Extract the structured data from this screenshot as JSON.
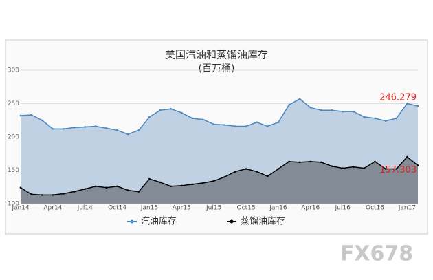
{
  "chart_data": {
    "type": "area",
    "title": "美国汽油和蒸馏油库存",
    "subtitle": "(百万桶)",
    "categories": [
      "Jan14",
      null,
      null,
      "Apr14",
      null,
      null,
      "Jul14",
      null,
      null,
      "Oct14",
      null,
      null,
      "Jan15",
      null,
      null,
      "Apr15",
      null,
      null,
      "Jul15",
      null,
      null,
      "Oct15",
      null,
      null,
      "Jan16",
      null,
      null,
      "Apr16",
      null,
      null,
      "Jul16",
      null,
      null,
      "Oct16",
      null,
      null,
      "Jan17",
      null
    ],
    "series": [
      {
        "name": "汽油库存",
        "color": "#4a86c0",
        "fill": "#bccfe1",
        "values": [
          232,
          233,
          225,
          212,
          212,
          214,
          215,
          216,
          213,
          210,
          204,
          210,
          230,
          240,
          242,
          236,
          228,
          226,
          219,
          218,
          216,
          216,
          222,
          216,
          222,
          248,
          257,
          244,
          240,
          240,
          238,
          238,
          230,
          228,
          224,
          228,
          250,
          246.279
        ]
      },
      {
        "name": "蒸馏油库存",
        "color": "#000000",
        "fill": "#7f8891",
        "values": [
          124,
          114,
          113,
          113,
          115,
          118,
          122,
          126,
          124,
          126,
          120,
          118,
          137,
          132,
          126,
          127,
          129,
          131,
          134,
          140,
          148,
          152,
          148,
          141,
          152,
          163,
          162,
          163,
          162,
          156,
          153,
          155,
          153,
          163,
          152,
          152,
          170,
          157.303
        ]
      }
    ],
    "ylim": [
      100,
      300
    ],
    "yticks": [
      100,
      150,
      200,
      250,
      300
    ],
    "grid": true,
    "label_color": "#e0201b"
  },
  "watermark": "FX678"
}
